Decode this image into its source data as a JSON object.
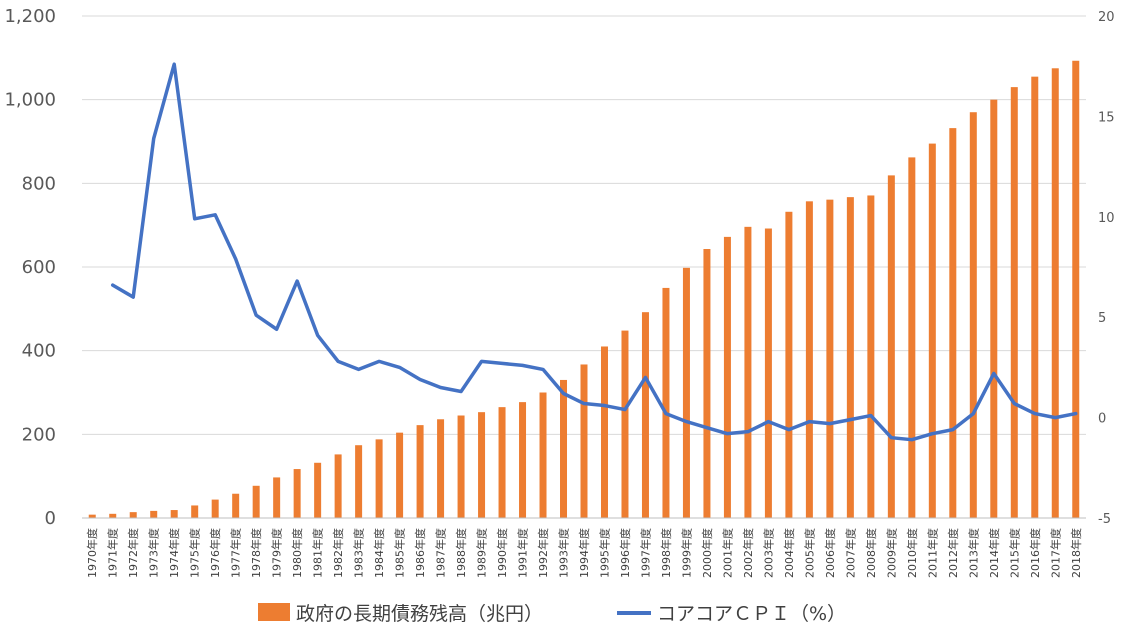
{
  "chart_data": {
    "type": "bar+line",
    "title": "",
    "categories": [
      "1970年度",
      "1971年度",
      "1972年度",
      "1973年度",
      "1974年度",
      "1975年度",
      "1976年度",
      "1977年度",
      "1978年度",
      "1979年度",
      "1980年度",
      "1981年度",
      "1982年度",
      "1983年度",
      "1984年度",
      "1985年度",
      "1986年度",
      "1987年度",
      "1988年度",
      "1989年度",
      "1990年度",
      "1991年度",
      "1992年度",
      "1993年度",
      "1994年度",
      "1995年度",
      "1996年度",
      "1997年度",
      "1998年度",
      "1999年度",
      "2000年度",
      "2001年度",
      "2002年度",
      "2003年度",
      "2004年度",
      "2005年度",
      "2006年度",
      "2007年度",
      "2008年度",
      "2009年度",
      "2010年度",
      "2011年度",
      "2012年度",
      "2013年度",
      "2014年度",
      "2015年度",
      "2016年度",
      "2017年度",
      "2018年度"
    ],
    "series": [
      {
        "name": "政府の長期債務残高（兆円）",
        "type": "bar",
        "axis": "left",
        "color": "#ED7D31",
        "values": [
          8,
          10,
          14,
          17,
          19,
          30,
          44,
          58,
          77,
          97,
          117,
          132,
          152,
          174,
          188,
          204,
          222,
          236,
          245,
          253,
          265,
          277,
          300,
          330,
          367,
          410,
          448,
          492,
          550,
          598,
          643,
          672,
          696,
          692,
          732,
          757,
          761,
          767,
          771,
          819,
          862,
          895,
          932,
          970,
          1000,
          1030,
          1055,
          1075,
          1093
        ]
      },
      {
        "name": "コアコアＣＰＩ（%）",
        "type": "line",
        "axis": "right",
        "color": "#4472C4",
        "values": [
          null,
          6.6,
          6.0,
          13.9,
          17.6,
          9.9,
          10.1,
          7.9,
          5.1,
          4.4,
          6.8,
          4.1,
          2.8,
          2.4,
          2.8,
          2.5,
          1.9,
          1.5,
          1.3,
          2.8,
          2.7,
          2.6,
          2.4,
          1.2,
          0.7,
          0.6,
          0.4,
          2.0,
          0.2,
          -0.2,
          -0.5,
          -0.8,
          -0.7,
          -0.2,
          -0.6,
          -0.2,
          -0.3,
          -0.1,
          0.1,
          -1.0,
          -1.1,
          -0.8,
          -0.6,
          0.2,
          2.2,
          0.7,
          0.2,
          0.0,
          0.2
        ]
      }
    ],
    "y_left": {
      "min": 0,
      "max": 1200,
      "ticks": [
        0,
        200,
        400,
        600,
        800,
        1000,
        1200
      ],
      "tick_labels": [
        "0",
        "200",
        "400",
        "600",
        "800",
        "1,000",
        "1,200"
      ]
    },
    "y_right": {
      "min": -5,
      "max": 20,
      "ticks": [
        -5,
        0,
        5,
        10,
        15,
        20
      ],
      "tick_labels": [
        "-5",
        "0",
        "5",
        "10",
        "15",
        "20"
      ]
    },
    "grid": true,
    "legend_position": "bottom"
  }
}
